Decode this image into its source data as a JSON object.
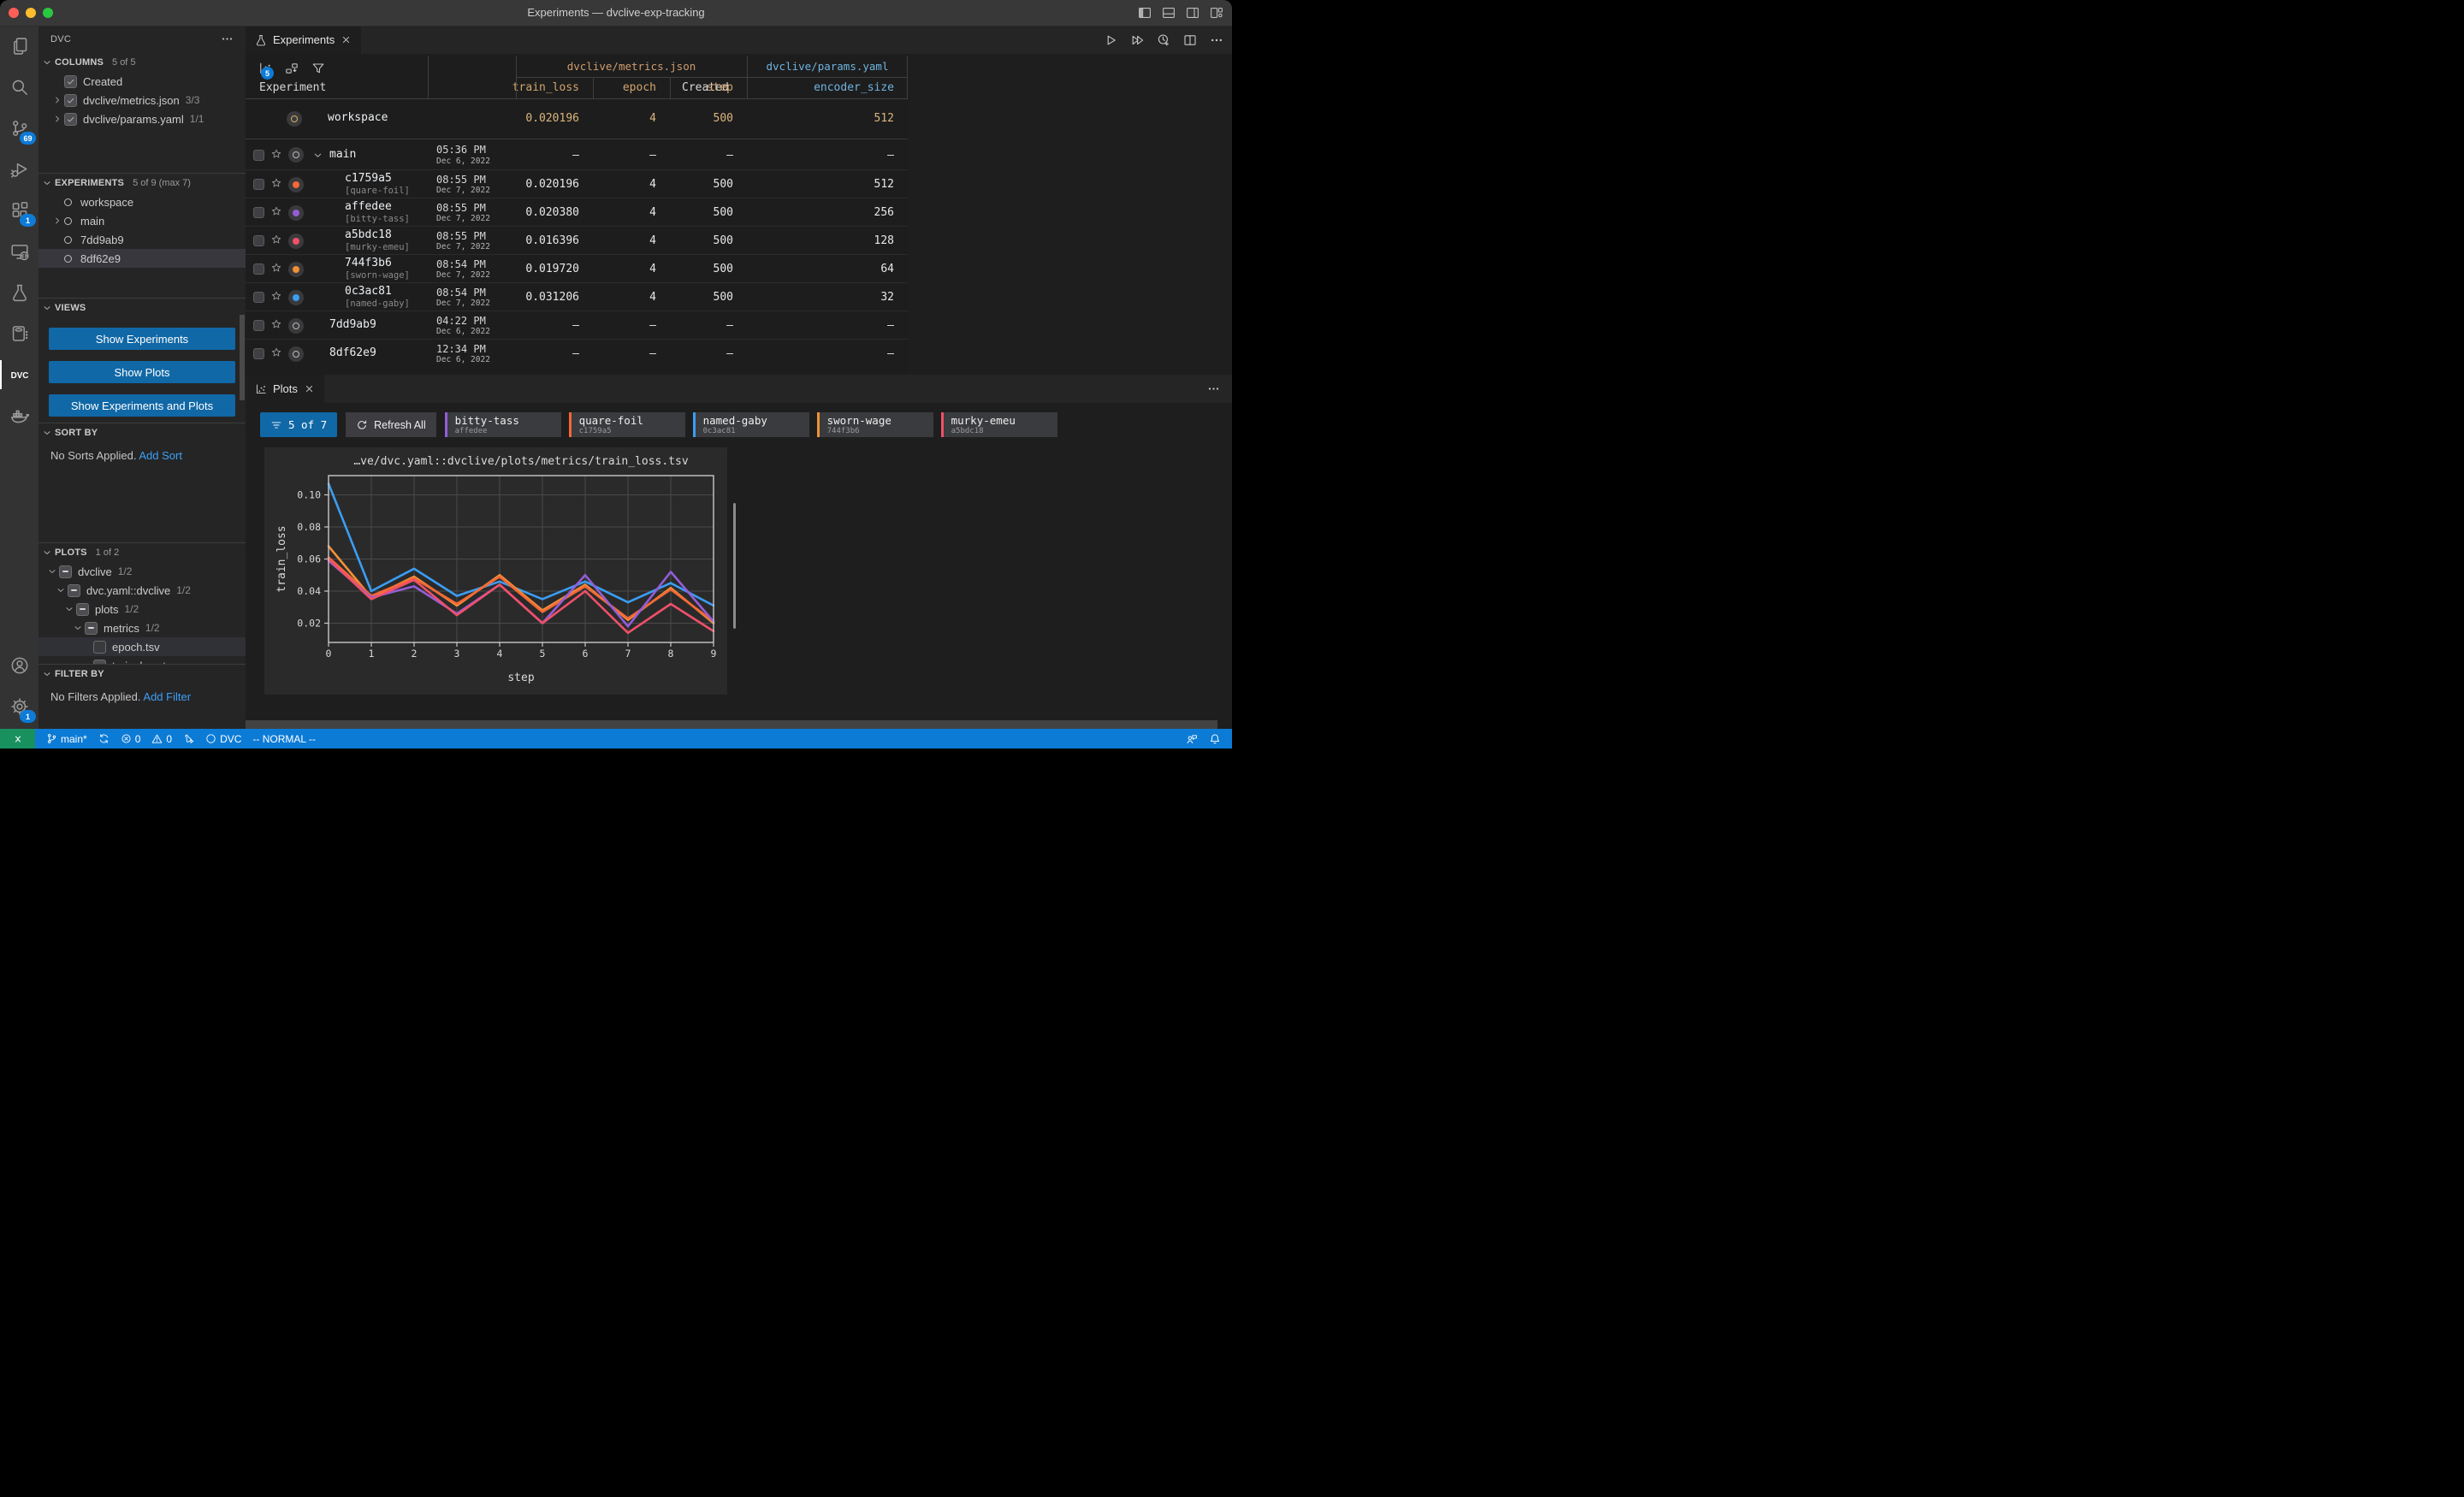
{
  "window": {
    "title": "Experiments — dvclive-exp-tracking"
  },
  "titlebar": {
    "layout_icons": [
      "layout-sidebar-left",
      "layout-panel",
      "layout-sidebar-right",
      "layout-customize"
    ]
  },
  "activity_bar": {
    "items": [
      {
        "icon": "files",
        "name": "explorer"
      },
      {
        "icon": "search",
        "name": "search"
      },
      {
        "icon": "source-control",
        "name": "source-control",
        "badge": "69"
      },
      {
        "icon": "run-debug",
        "name": "run-and-debug"
      },
      {
        "icon": "extensions",
        "name": "extensions",
        "badge": "1"
      },
      {
        "icon": "remote-explorer",
        "name": "remote-explorer"
      },
      {
        "icon": "beaker",
        "name": "testing"
      },
      {
        "icon": "notebook",
        "name": "notebook"
      },
      {
        "icon": "dvc-logo",
        "name": "dvc",
        "active": true
      },
      {
        "icon": "docker",
        "name": "docker"
      }
    ],
    "bottom": [
      {
        "icon": "account",
        "name": "accounts"
      },
      {
        "icon": "gear",
        "name": "settings",
        "badge": "1"
      }
    ]
  },
  "sidebar": {
    "header": {
      "title": "DVC"
    },
    "columns": {
      "title": "COLUMNS",
      "count": "5 of 5",
      "items": [
        {
          "label": "Created",
          "count": "",
          "twisty": false,
          "state": "checked"
        },
        {
          "label": "dvclive/metrics.json",
          "count": "3/3",
          "twisty": true,
          "state": "checked"
        },
        {
          "label": "dvclive/params.yaml",
          "count": "1/1",
          "twisty": true,
          "state": "checked"
        }
      ]
    },
    "experiments": {
      "title": "EXPERIMENTS",
      "count": "5 of 9 (max 7)",
      "items": [
        {
          "label": "workspace",
          "twisty": false,
          "selected": false
        },
        {
          "label": "main",
          "twisty": true,
          "selected": false
        },
        {
          "label": "7dd9ab9",
          "twisty": false,
          "selected": false
        },
        {
          "label": "8df62e9",
          "twisty": false,
          "selected": true
        }
      ]
    },
    "views": {
      "title": "VIEWS",
      "buttons": [
        "Show Experiments",
        "Show Plots",
        "Show Experiments and Plots"
      ]
    },
    "sort_by": {
      "title": "SORT BY",
      "empty_text": "No Sorts Applied.",
      "link": "Add Sort"
    },
    "plots": {
      "title": "PLOTS",
      "count": "1 of 2",
      "tree": [
        {
          "label": "dvclive",
          "count": "1/2",
          "indent": 0,
          "twisty": "down",
          "state": "indeterminate",
          "selected": false
        },
        {
          "label": "dvc.yaml::dvclive",
          "count": "1/2",
          "indent": 1,
          "twisty": "down",
          "state": "indeterminate",
          "selected": false
        },
        {
          "label": "plots",
          "count": "1/2",
          "indent": 2,
          "twisty": "down",
          "state": "indeterminate",
          "selected": false
        },
        {
          "label": "metrics",
          "count": "1/2",
          "indent": 3,
          "twisty": "down",
          "state": "indeterminate",
          "selected": false
        },
        {
          "label": "epoch.tsv",
          "count": "",
          "indent": 4,
          "twisty": "none",
          "state": "empty",
          "selected": true
        },
        {
          "label": "train_loss.tsv",
          "count": "",
          "indent": 4,
          "twisty": "none",
          "state": "checked",
          "selected": false
        }
      ]
    },
    "filter_by": {
      "title": "FILTER BY",
      "empty_text": "No Filters Applied.",
      "link": "Add Filter"
    }
  },
  "editor": {
    "tab": {
      "label": "Experiments"
    },
    "actions": [
      "play",
      "play-all",
      "history-plus",
      "split-editor",
      "ellipsis"
    ]
  },
  "table": {
    "toolbar": {
      "badge": "5",
      "icons": [
        "plots-graph",
        "move-cells",
        "funnel"
      ]
    },
    "group_headers": [
      {
        "label": "dvclive/metrics.json",
        "color": "#cf9d6e"
      },
      {
        "label": "dvclive/params.yaml",
        "color": "#6fb3e0"
      }
    ],
    "columns": [
      "Experiment",
      "Created",
      "train_loss",
      "epoch",
      "step",
      "encoder_size"
    ],
    "rows": [
      {
        "name": "workspace",
        "tag": "",
        "kind": "workspace",
        "color": "",
        "time": "",
        "date": "",
        "values": [
          "0.020196",
          "4",
          "500",
          "512"
        ]
      },
      {
        "name": "main",
        "tag": "",
        "kind": "branch",
        "twisty": true,
        "color": "",
        "time": "05:36 PM",
        "date": "Dec 6, 2022",
        "values": [
          "–",
          "–",
          "–",
          "–"
        ]
      },
      {
        "name": "c1759a5",
        "tag": "[quare-foil]",
        "kind": "child",
        "color": "#f46837",
        "time": "08:55 PM",
        "date": "Dec 7, 2022",
        "values": [
          "0.020196",
          "4",
          "500",
          "512"
        ]
      },
      {
        "name": "affedee",
        "tag": "[bitty-tass]",
        "kind": "child",
        "color": "#945dd6",
        "time": "08:55 PM",
        "date": "Dec 7, 2022",
        "values": [
          "0.020380",
          "4",
          "500",
          "256"
        ]
      },
      {
        "name": "a5bdc18",
        "tag": "[murky-emeu]",
        "kind": "child",
        "color": "#f05069",
        "time": "08:55 PM",
        "date": "Dec 7, 2022",
        "values": [
          "0.016396",
          "4",
          "500",
          "128"
        ]
      },
      {
        "name": "744f3b6",
        "tag": "[sworn-wage]",
        "kind": "child",
        "color": "#f09137",
        "time": "08:54 PM",
        "date": "Dec 7, 2022",
        "values": [
          "0.019720",
          "4",
          "500",
          "64"
        ]
      },
      {
        "name": "0c3ac81",
        "tag": "[named-gaby]",
        "kind": "child",
        "color": "#3b9df2",
        "time": "08:54 PM",
        "date": "Dec 7, 2022",
        "values": [
          "0.031206",
          "4",
          "500",
          "32"
        ]
      },
      {
        "name": "7dd9ab9",
        "tag": "",
        "kind": "branch",
        "twisty": false,
        "color": "",
        "time": "04:22 PM",
        "date": "Dec 6, 2022",
        "values": [
          "–",
          "–",
          "–",
          "–"
        ]
      },
      {
        "name": "8df62e9",
        "tag": "",
        "kind": "branch",
        "twisty": false,
        "color": "",
        "time": "12:34 PM",
        "date": "Dec 6, 2022",
        "values": [
          "–",
          "–",
          "–",
          "–"
        ]
      }
    ]
  },
  "plots_panel": {
    "tab": {
      "label": "Plots"
    },
    "ribbon": {
      "filter_label": "5 of 7",
      "refresh_label": "Refresh All",
      "chips": [
        {
          "name": "bitty-tass",
          "id": "affedee",
          "color": "#945dd6"
        },
        {
          "name": "quare-foil",
          "id": "c1759a5",
          "color": "#f46837"
        },
        {
          "name": "named-gaby",
          "id": "0c3ac81",
          "color": "#3b9df2"
        },
        {
          "name": "sworn-wage",
          "id": "744f3b6",
          "color": "#f09137"
        },
        {
          "name": "murky-emeu",
          "id": "a5bdc18",
          "color": "#f05069"
        }
      ]
    }
  },
  "chart_data": {
    "type": "line",
    "title": "…ve/dvc.yaml::dvclive/plots/metrics/train_loss.tsv",
    "xlabel": "step",
    "ylabel": "train_loss",
    "x": [
      0,
      1,
      2,
      3,
      4,
      5,
      6,
      7,
      8,
      9
    ],
    "ylim": [
      0.008,
      0.112
    ],
    "yticks": [
      0.02,
      0.04,
      0.06,
      0.08,
      0.1
    ],
    "grid": true,
    "legend_position": "none",
    "series": [
      {
        "name": "named-gaby",
        "color": "#3b9df2",
        "values": [
          0.107,
          0.04,
          0.054,
          0.037,
          0.046,
          0.035,
          0.046,
          0.033,
          0.045,
          0.031
        ]
      },
      {
        "name": "sworn-wage",
        "color": "#f09137",
        "values": [
          0.068,
          0.036,
          0.049,
          0.031,
          0.05,
          0.028,
          0.044,
          0.022,
          0.042,
          0.02
        ]
      },
      {
        "name": "quare-foil",
        "color": "#f46837",
        "values": [
          0.061,
          0.037,
          0.048,
          0.032,
          0.049,
          0.027,
          0.043,
          0.023,
          0.041,
          0.021
        ]
      },
      {
        "name": "bitty-tass",
        "color": "#945dd6",
        "values": [
          0.059,
          0.036,
          0.043,
          0.026,
          0.044,
          0.02,
          0.05,
          0.018,
          0.052,
          0.021
        ]
      },
      {
        "name": "murky-emeu",
        "color": "#f05069",
        "values": [
          0.06,
          0.035,
          0.047,
          0.025,
          0.044,
          0.02,
          0.04,
          0.014,
          0.032,
          0.015
        ]
      }
    ]
  },
  "status_bar": {
    "left": [
      {
        "icon": "git-branch",
        "label": "main*",
        "name": "branch-status"
      },
      {
        "icon": "sync",
        "label": "",
        "name": "sync-status"
      },
      {
        "icon": "error-x",
        "label": "0",
        "name": "errors-status"
      },
      {
        "icon": "warning",
        "label": "0",
        "name": "warnings-status"
      },
      {
        "icon": "beaker-run",
        "label": "",
        "name": "dvc-run-status"
      },
      {
        "icon": "status-circle",
        "label": "DVC",
        "name": "dvc-status"
      },
      {
        "icon": "",
        "label": "-- NORMAL --",
        "name": "vim-mode-status"
      }
    ],
    "right": [
      {
        "icon": "feedback",
        "name": "feedback"
      },
      {
        "icon": "bell",
        "name": "notifications"
      }
    ]
  }
}
